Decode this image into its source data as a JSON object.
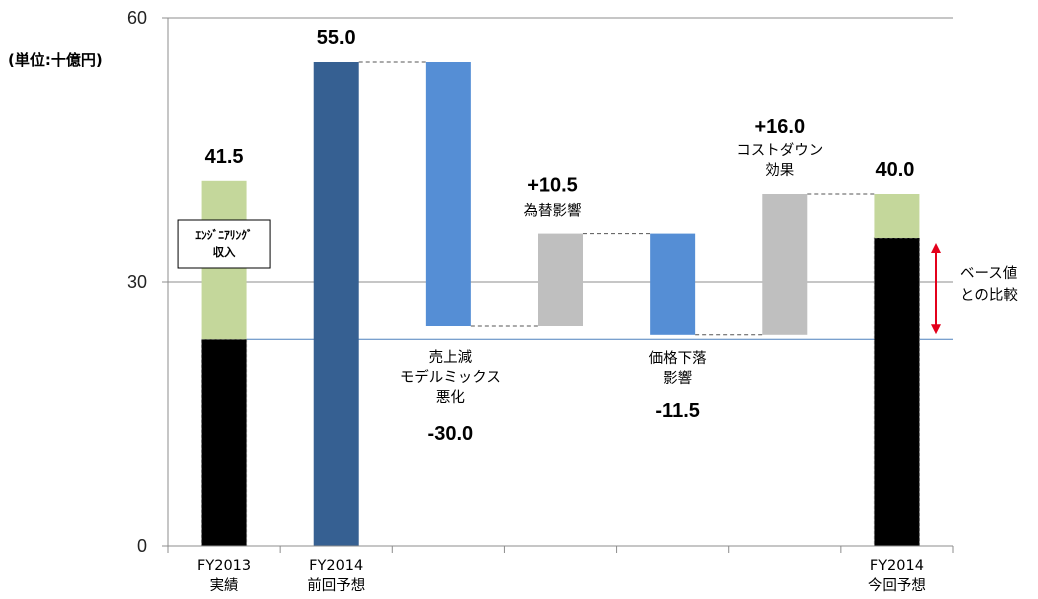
{
  "unit_label": "(単位:十億円)",
  "chart_data": {
    "type": "bar",
    "subtype": "waterfall",
    "ylim": [
      0,
      60
    ],
    "y_ticks": [
      0,
      30,
      60
    ],
    "grid": "horizontal",
    "categories": [
      {
        "label_lines": [
          "FY2013",
          "実績"
        ]
      },
      {
        "label_lines": [
          "FY2014",
          "前回予想"
        ]
      },
      {
        "label_lines": []
      },
      {
        "label_lines": []
      },
      {
        "label_lines": []
      },
      {
        "label_lines": []
      },
      {
        "label_lines": [
          "FY2014",
          "今回予想"
        ]
      }
    ],
    "bars": [
      {
        "segments": [
          {
            "from": 0,
            "to": 23.5,
            "color": "#000000"
          },
          {
            "from": 23.5,
            "to": 41.5,
            "color": "#c4d79b"
          }
        ],
        "value_label": "41.5"
      },
      {
        "segments": [
          {
            "from": 0,
            "to": 55.0,
            "color": "#366092"
          }
        ],
        "value_label": "55.0"
      },
      {
        "segments": [
          {
            "from": 25.0,
            "to": 55.0,
            "color": "#558ed5"
          }
        ],
        "value_label": "-30.0"
      },
      {
        "segments": [
          {
            "from": 25.0,
            "to": 35.5,
            "color": "#bfbfbf"
          }
        ],
        "value_label": "+10.5"
      },
      {
        "segments": [
          {
            "from": 24.0,
            "to": 35.5,
            "color": "#558ed5"
          }
        ],
        "value_label": "-11.5"
      },
      {
        "segments": [
          {
            "from": 24.0,
            "to": 40.0,
            "color": "#bfbfbf"
          }
        ],
        "value_label": "+16.0"
      },
      {
        "segments": [
          {
            "from": 0,
            "to": 35.0,
            "color": "#000000"
          },
          {
            "from": 35.0,
            "to": 40.0,
            "color": "#c4d79b"
          }
        ],
        "value_label": "40.0"
      }
    ],
    "annotations": [
      {
        "bar": 2,
        "lines": [
          "売上減",
          "モデルミックス",
          "悪化"
        ]
      },
      {
        "bar": 3,
        "lines": [
          "為替影響"
        ]
      },
      {
        "bar": 4,
        "lines": [
          "価格下落",
          "影響"
        ]
      },
      {
        "bar": 5,
        "lines": [
          "コストダウン",
          "効果"
        ]
      }
    ],
    "box_label_lines": [
      "ｴﾝｼﾞﾆｱﾘﾝｸﾞ",
      "収入"
    ],
    "baseline": {
      "value": 23.5,
      "color": "#4f81bd"
    },
    "comparison_label_lines": [
      "ベース値",
      "との比較"
    ],
    "arrow_color": "#e3001b"
  }
}
